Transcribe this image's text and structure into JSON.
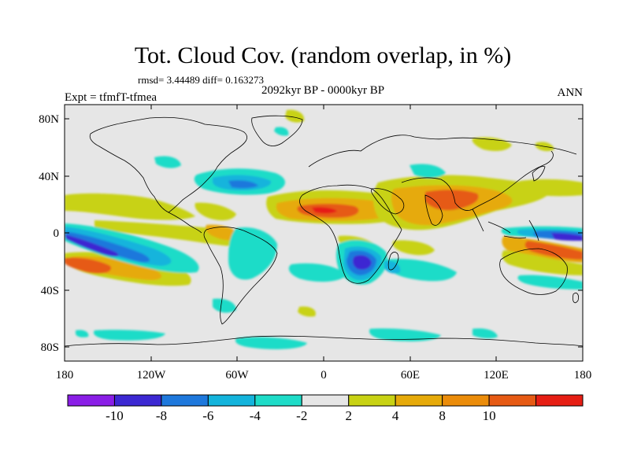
{
  "title": "Tot. Cloud Cov. (random overlap, in %)",
  "stats": "rmsd= 3.44489 diff= 0.163273",
  "period": "2092kyr BP - 0000kyr BP",
  "experiment": "Expt = tfmfT-tfmea",
  "season": "ANN",
  "axes": {
    "lon_ticks": [
      "180",
      "120W",
      "60W",
      "0",
      "60E",
      "120E",
      "180"
    ],
    "lat_ticks": [
      "80N",
      "40N",
      "0",
      "40S",
      "80S"
    ]
  },
  "colorbar": {
    "labels": [
      "-10",
      "-8",
      "-6",
      "-4",
      "-2",
      "2",
      "4",
      "8",
      "10"
    ],
    "colors": [
      "#8a1ee6",
      "#3c28d2",
      "#1e78dc",
      "#14b4dc",
      "#1edcc8",
      "#e6e6e6",
      "#c8d214",
      "#e6aa0a",
      "#eb8c0a",
      "#e65a14",
      "#e61e14"
    ]
  },
  "colors": {
    "background": "#e6e6e6",
    "coastline": "#000000"
  }
}
